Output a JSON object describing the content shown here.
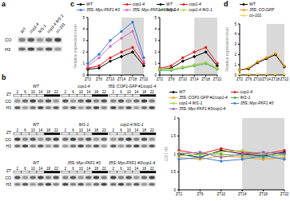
{
  "panel_labels": [
    "a",
    "b",
    "c",
    "d"
  ],
  "a": {
    "columns": [
      "WT",
      "cop1-4",
      "fkf1-1",
      "cop1-4 fkf1-1",
      "co-101"
    ],
    "rows": [
      "CO",
      "H3"
    ]
  },
  "b": {
    "time_label": "ZT",
    "times": [
      2,
      6,
      10,
      14,
      18,
      22
    ],
    "rows": [
      "CO",
      "H3"
    ],
    "blots": [
      [
        "WT",
        "cop1-4",
        "35S::COP1-GFP #1/cop1-4"
      ],
      [
        "WT",
        "fkf1-1",
        "cop1-4 fkf1-1"
      ],
      [
        "WT",
        "35S::Myc-FKF1 #3",
        "35S::Myc-FKF1 #3/cop1-4"
      ]
    ]
  },
  "chart_data": [
    {
      "type": "line",
      "y_label": "Relative expression level",
      "categories": [
        "ZT2",
        "ZT6",
        "ZT10",
        "ZT14",
        "ZT18",
        "ZT22"
      ],
      "night": [
        "ZT14",
        "ZT22"
      ],
      "ylim": [
        0,
        5
      ],
      "yticks": [
        0,
        1,
        2,
        3,
        4,
        5
      ],
      "series": [
        {
          "name": "WT",
          "color": "#000000",
          "values": [
            0.5,
            0.6,
            1.2,
            1.6,
            2.0,
            0.8
          ]
        },
        {
          "name": "cop1-4",
          "color": "#e41a1c",
          "values": [
            0.6,
            0.8,
            1.5,
            2.0,
            2.4,
            1.0
          ]
        },
        {
          "name": "35S::Myc-FKF1 #3",
          "color": "#3a7dd8",
          "values": [
            1.0,
            1.8,
            3.0,
            3.8,
            4.6,
            1.5
          ]
        },
        {
          "name": "35S::Myc-FKF1 #3/cop1-4",
          "color": "#d86cc8",
          "values": [
            0.8,
            1.5,
            2.5,
            3.2,
            3.8,
            1.2
          ]
        }
      ]
    },
    {
      "type": "line",
      "categories": [
        "ZT2",
        "ZT6",
        "ZT10",
        "ZT14",
        "ZT18",
        "ZT22"
      ],
      "night": [
        "ZT14",
        "ZT22"
      ],
      "ylim": [
        0,
        5
      ],
      "yticks": [
        0,
        1,
        2,
        3,
        4,
        5
      ],
      "series": [
        {
          "name": "WT",
          "color": "#000000",
          "values": [
            0.5,
            0.6,
            1.2,
            1.6,
            2.0,
            0.8
          ]
        },
        {
          "name": "cop1-4",
          "color": "#e41a1c",
          "values": [
            0.6,
            0.8,
            1.5,
            2.0,
            2.4,
            1.0
          ]
        },
        {
          "name": "fkf1-1",
          "color": "#4daf4a",
          "values": [
            0.4,
            0.4,
            0.6,
            0.8,
            1.0,
            0.5
          ]
        },
        {
          "name": "cop1-4 fkf1-1",
          "color": "#a6d854",
          "values": [
            0.5,
            0.5,
            0.7,
            0.9,
            1.1,
            0.6
          ]
        }
      ]
    },
    {
      "type": "line",
      "y_label": "Relative expression level",
      "categories": [
        "ZT2",
        "ZT6",
        "ZT10",
        "ZT14",
        "ZT18",
        "ZT22"
      ],
      "night": [
        "ZT14",
        "ZT22"
      ],
      "ylim": [
        0,
        5
      ],
      "yticks": [
        0,
        1,
        2,
        3,
        4,
        5
      ],
      "series": [
        {
          "name": "WT",
          "color": "#000000",
          "values": [
            0.5,
            0.6,
            1.2,
            1.6,
            2.0,
            0.8
          ]
        },
        {
          "name": "35S::CO-GFP",
          "color": "#f39c12",
          "values": [
            0.5,
            0.7,
            1.3,
            1.7,
            2.1,
            0.9
          ]
        },
        {
          "name": "co-101",
          "color": "#f5d742",
          "values": [
            0.05,
            0.05,
            0.05,
            0.05,
            0.05,
            0.05
          ]
        }
      ]
    },
    {
      "type": "line",
      "y_label": "CO / H3",
      "categories": [
        "ZT2",
        "ZT6",
        "ZT10",
        "ZT14",
        "ZT18",
        "ZT22"
      ],
      "night": [
        "ZT14",
        "ZT22"
      ],
      "ylim": [
        0,
        2
      ],
      "yticks": [
        0,
        0.5,
        1,
        1.5,
        2
      ],
      "series": [
        {
          "name": "WT",
          "color": "#000000",
          "values": [
            1.0,
            0.9,
            1.1,
            1.0,
            0.95,
            1.05
          ]
        },
        {
          "name": "cop1-4",
          "color": "#e41a1c",
          "values": [
            1.1,
            1.0,
            1.15,
            1.05,
            1.0,
            1.1
          ]
        },
        {
          "name": "35S::COP1-GFP #1/cop1-4",
          "color": "#f39c12",
          "values": [
            0.9,
            0.85,
            0.95,
            0.9,
            0.85,
            0.9
          ]
        },
        {
          "name": "fkf1-1",
          "color": "#4daf4a",
          "values": [
            0.95,
            1.0,
            1.0,
            0.95,
            0.9,
            1.0
          ]
        },
        {
          "name": "cop1-4 fkf1-1",
          "color": "#a6d854",
          "values": [
            1.05,
            0.95,
            1.05,
            1.1,
            1.0,
            0.95
          ]
        },
        {
          "name": "35S::Myc-FKF1 #3",
          "color": "#3a7dd8",
          "values": [
            0.85,
            0.9,
            0.8,
            0.85,
            0.95,
            0.85
          ]
        },
        {
          "name": "35S::Myc-FKF1 #3/cop1-4",
          "color": "#9467bd",
          "values": [
            1.0,
            1.05,
            0.9,
            1.0,
            1.05,
            1.0
          ]
        }
      ]
    }
  ]
}
